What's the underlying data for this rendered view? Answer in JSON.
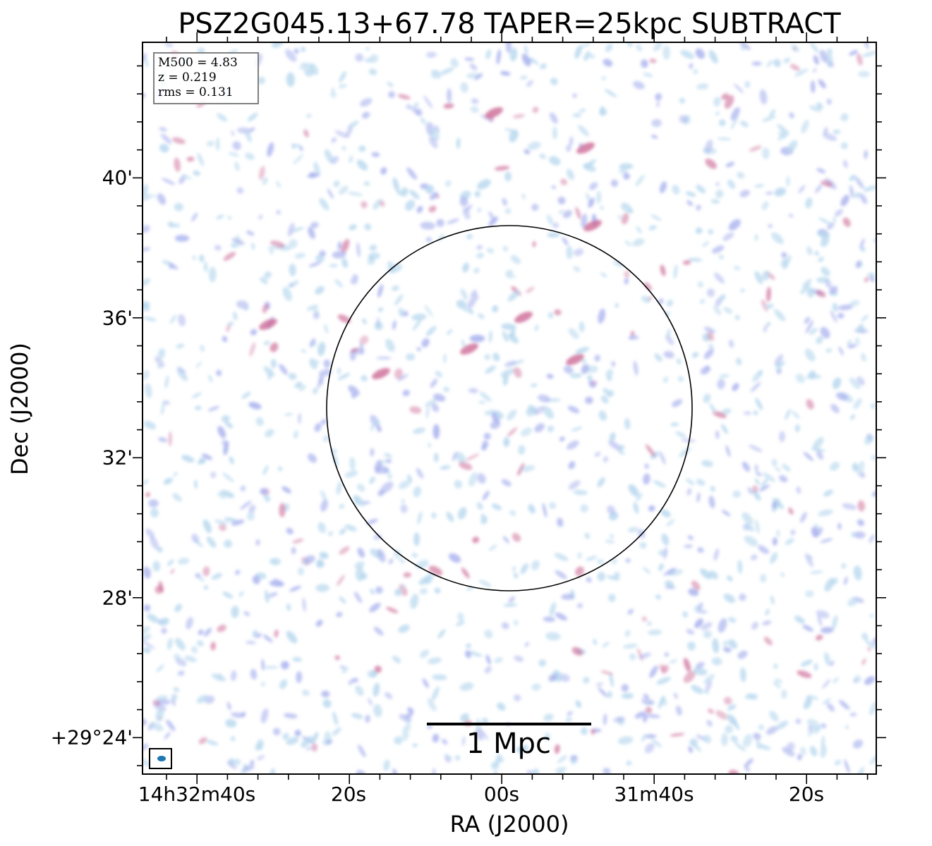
{
  "title": "PSZ2G045.13+67.78 TAPER=25kpc SUBTRACT",
  "axes": {
    "xlabel": "RA (J2000)",
    "ylabel": "Dec (J2000)",
    "xticks": [
      "14h32m40s",
      "20s",
      "00s",
      "31m40s",
      "20s"
    ],
    "yticks": [
      "40'",
      "36'",
      "32'",
      "28'",
      "+29°24'"
    ]
  },
  "info": {
    "m500": "M500 = 4.83",
    "z": "z = 0.219",
    "rms": "rms = 0.131"
  },
  "scalebar": {
    "label": "1 Mpc"
  },
  "colors": {
    "low_emission": "#b8d8ee",
    "mid_emission": "#a9b2ee",
    "high_emission": "#c9608f",
    "circle": "#000000",
    "beam": "#1f77b4"
  }
}
